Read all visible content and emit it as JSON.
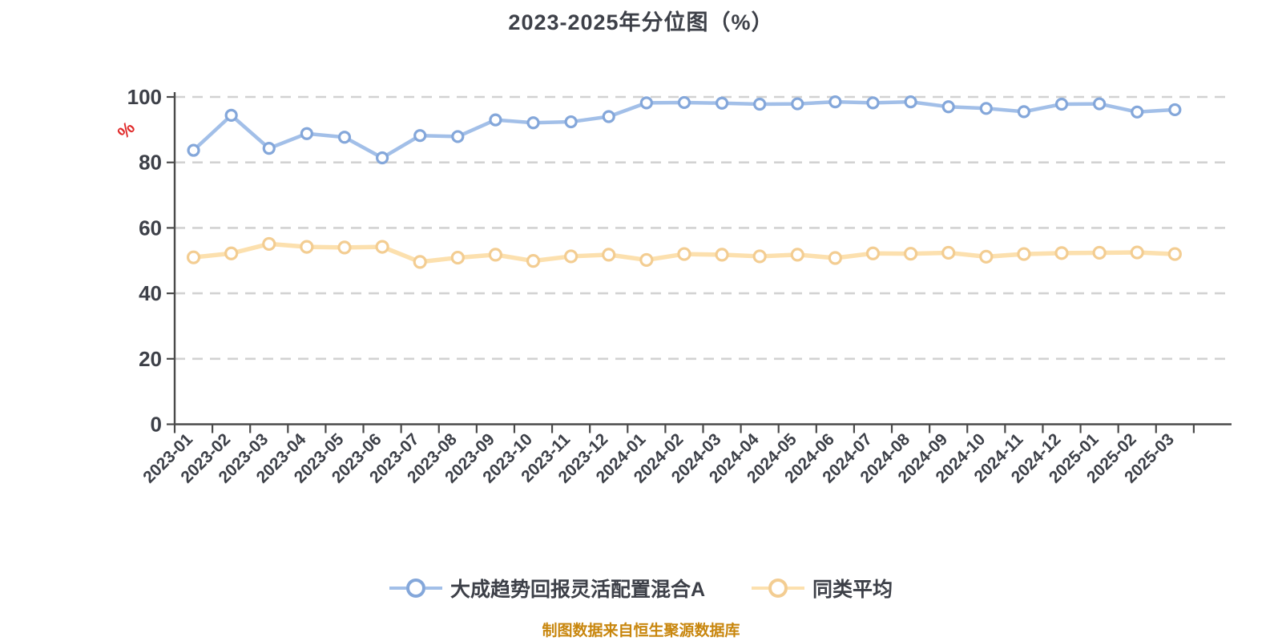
{
  "title": "2023-2025年分位图（%）",
  "caption": "制图数据来自恒生聚源数据库",
  "y_axis_unit": "%",
  "colors": {
    "background": "#ffffff",
    "text": "#3d4048",
    "axis": "#4a4a4a",
    "gridline": "#d2d2d2",
    "unit_label": "#e02a2a",
    "caption": "#c8860d",
    "series_fund_line": "#a2bfe8",
    "series_fund_marker": "#84a7da",
    "series_avg_line": "#fce0ae",
    "series_avg_marker": "#f3cd92"
  },
  "chart_data": {
    "type": "line",
    "title": "2023-2025年分位图（%）",
    "xlabel": "",
    "ylabel": "%",
    "ylim": [
      0,
      100
    ],
    "y_ticks": [
      0,
      20,
      40,
      60,
      80,
      100
    ],
    "grid": "horizontal-dashed",
    "legend_position": "bottom",
    "x": [
      "2023-01",
      "2023-02",
      "2023-03",
      "2023-04",
      "2023-05",
      "2023-06",
      "2023-07",
      "2023-08",
      "2023-09",
      "2023-10",
      "2023-11",
      "2023-12",
      "2024-01",
      "2024-02",
      "2024-03",
      "2024-04",
      "2024-05",
      "2024-06",
      "2024-07",
      "2024-08",
      "2024-09",
      "2024-10",
      "2024-11",
      "2024-12",
      "2025-01",
      "2025-02",
      "2025-03"
    ],
    "series": [
      {
        "name": "大成趋势回报灵活配置混合A",
        "line_color": "#a2bfe8",
        "marker_color": "#84a7da",
        "values": [
          83.7,
          94.4,
          84.3,
          88.8,
          87.7,
          81.4,
          88.2,
          87.9,
          93.0,
          92.1,
          92.4,
          94.0,
          98.2,
          98.3,
          98.1,
          97.8,
          97.9,
          98.5,
          98.2,
          98.5,
          97.0,
          96.5,
          95.5,
          97.8,
          97.9,
          95.4,
          96.1
        ]
      },
      {
        "name": "同类平均",
        "line_color": "#fce0ae",
        "marker_color": "#f3cd92",
        "values": [
          51.0,
          52.2,
          55.1,
          54.2,
          54.0,
          54.2,
          49.6,
          50.9,
          51.8,
          49.9,
          51.3,
          51.8,
          50.2,
          52.0,
          51.8,
          51.3,
          51.8,
          50.8,
          52.2,
          52.1,
          52.4,
          51.2,
          52.0,
          52.3,
          52.4,
          52.5,
          52.0
        ]
      }
    ]
  }
}
